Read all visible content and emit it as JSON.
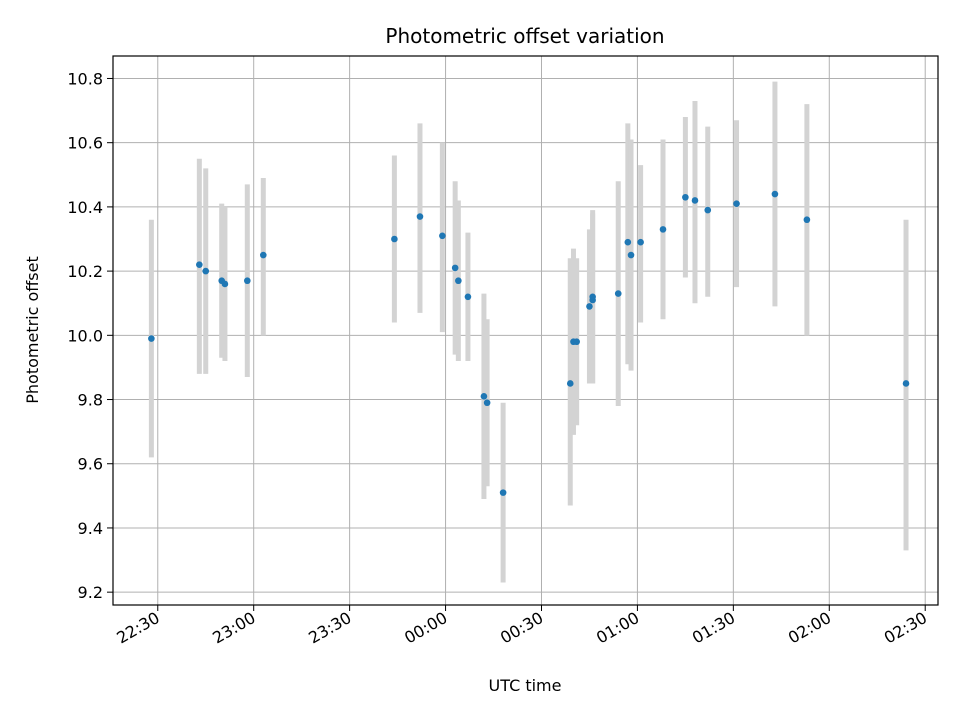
{
  "chart_data": {
    "type": "scatter",
    "title": "Photometric offset variation",
    "xlabel": "UTC time",
    "ylabel": "Photometric offset",
    "x_axis_kind": "time",
    "x_tick_labels": [
      "22:30",
      "23:00",
      "23:30",
      "00:00",
      "00:30",
      "01:00",
      "01:30",
      "02:00",
      "02:30"
    ],
    "xlim": [
      "22:16",
      "02:34"
    ],
    "y_ticks": [
      9.2,
      9.4,
      9.6,
      9.8,
      10.0,
      10.2,
      10.4,
      10.6,
      10.8
    ],
    "ylim": [
      9.16,
      10.87
    ],
    "grid": true,
    "marker_color": "#1f77b4",
    "errorbar_color": "#d3d3d3",
    "points": [
      {
        "time": "22:28",
        "y": 9.99,
        "ylow": 9.62,
        "yhigh": 10.36
      },
      {
        "time": "22:43",
        "y": 10.22,
        "ylow": 9.88,
        "yhigh": 10.55
      },
      {
        "time": "22:45",
        "y": 10.2,
        "ylow": 9.88,
        "yhigh": 10.52
      },
      {
        "time": "22:50",
        "y": 10.17,
        "ylow": 9.93,
        "yhigh": 10.41
      },
      {
        "time": "22:51",
        "y": 10.16,
        "ylow": 9.92,
        "yhigh": 10.4
      },
      {
        "time": "22:58",
        "y": 10.17,
        "ylow": 9.87,
        "yhigh": 10.47
      },
      {
        "time": "23:03",
        "y": 10.25,
        "ylow": 10.0,
        "yhigh": 10.49
      },
      {
        "time": "23:44",
        "y": 10.3,
        "ylow": 10.04,
        "yhigh": 10.56
      },
      {
        "time": "23:52",
        "y": 10.37,
        "ylow": 10.07,
        "yhigh": 10.66
      },
      {
        "time": "23:59",
        "y": 10.31,
        "ylow": 10.01,
        "yhigh": 10.6
      },
      {
        "time": "00:03",
        "y": 10.21,
        "ylow": 9.94,
        "yhigh": 10.48
      },
      {
        "time": "00:04",
        "y": 10.17,
        "ylow": 9.92,
        "yhigh": 10.42
      },
      {
        "time": "00:07",
        "y": 10.12,
        "ylow": 9.92,
        "yhigh": 10.32
      },
      {
        "time": "00:12",
        "y": 9.81,
        "ylow": 9.49,
        "yhigh": 10.13
      },
      {
        "time": "00:13",
        "y": 9.79,
        "ylow": 9.53,
        "yhigh": 10.05
      },
      {
        "time": "00:18",
        "y": 9.51,
        "ylow": 9.23,
        "yhigh": 9.79
      },
      {
        "time": "00:39",
        "y": 9.85,
        "ylow": 9.47,
        "yhigh": 10.24
      },
      {
        "time": "00:40",
        "y": 9.98,
        "ylow": 9.69,
        "yhigh": 10.27
      },
      {
        "time": "00:41",
        "y": 9.98,
        "ylow": 9.72,
        "yhigh": 10.24
      },
      {
        "time": "00:45",
        "y": 10.09,
        "ylow": 9.85,
        "yhigh": 10.33
      },
      {
        "time": "00:46",
        "y": 10.11,
        "ylow": 9.85,
        "yhigh": 10.38
      },
      {
        "time": "00:46",
        "y": 10.12,
        "ylow": 9.85,
        "yhigh": 10.39
      },
      {
        "time": "00:54",
        "y": 10.13,
        "ylow": 9.78,
        "yhigh": 10.48
      },
      {
        "time": "00:57",
        "y": 10.29,
        "ylow": 9.91,
        "yhigh": 10.66
      },
      {
        "time": "00:58",
        "y": 10.25,
        "ylow": 9.89,
        "yhigh": 10.61
      },
      {
        "time": "01:01",
        "y": 10.29,
        "ylow": 10.04,
        "yhigh": 10.53
      },
      {
        "time": "01:08",
        "y": 10.33,
        "ylow": 10.05,
        "yhigh": 10.61
      },
      {
        "time": "01:15",
        "y": 10.43,
        "ylow": 10.18,
        "yhigh": 10.68
      },
      {
        "time": "01:18",
        "y": 10.42,
        "ylow": 10.1,
        "yhigh": 10.73
      },
      {
        "time": "01:22",
        "y": 10.39,
        "ylow": 10.12,
        "yhigh": 10.65
      },
      {
        "time": "01:31",
        "y": 10.41,
        "ylow": 10.15,
        "yhigh": 10.67
      },
      {
        "time": "01:43",
        "y": 10.44,
        "ylow": 10.09,
        "yhigh": 10.79
      },
      {
        "time": "01:53",
        "y": 10.36,
        "ylow": 10.0,
        "yhigh": 10.72
      },
      {
        "time": "02:24",
        "y": 9.85,
        "ylow": 9.33,
        "yhigh": 10.36
      }
    ]
  }
}
